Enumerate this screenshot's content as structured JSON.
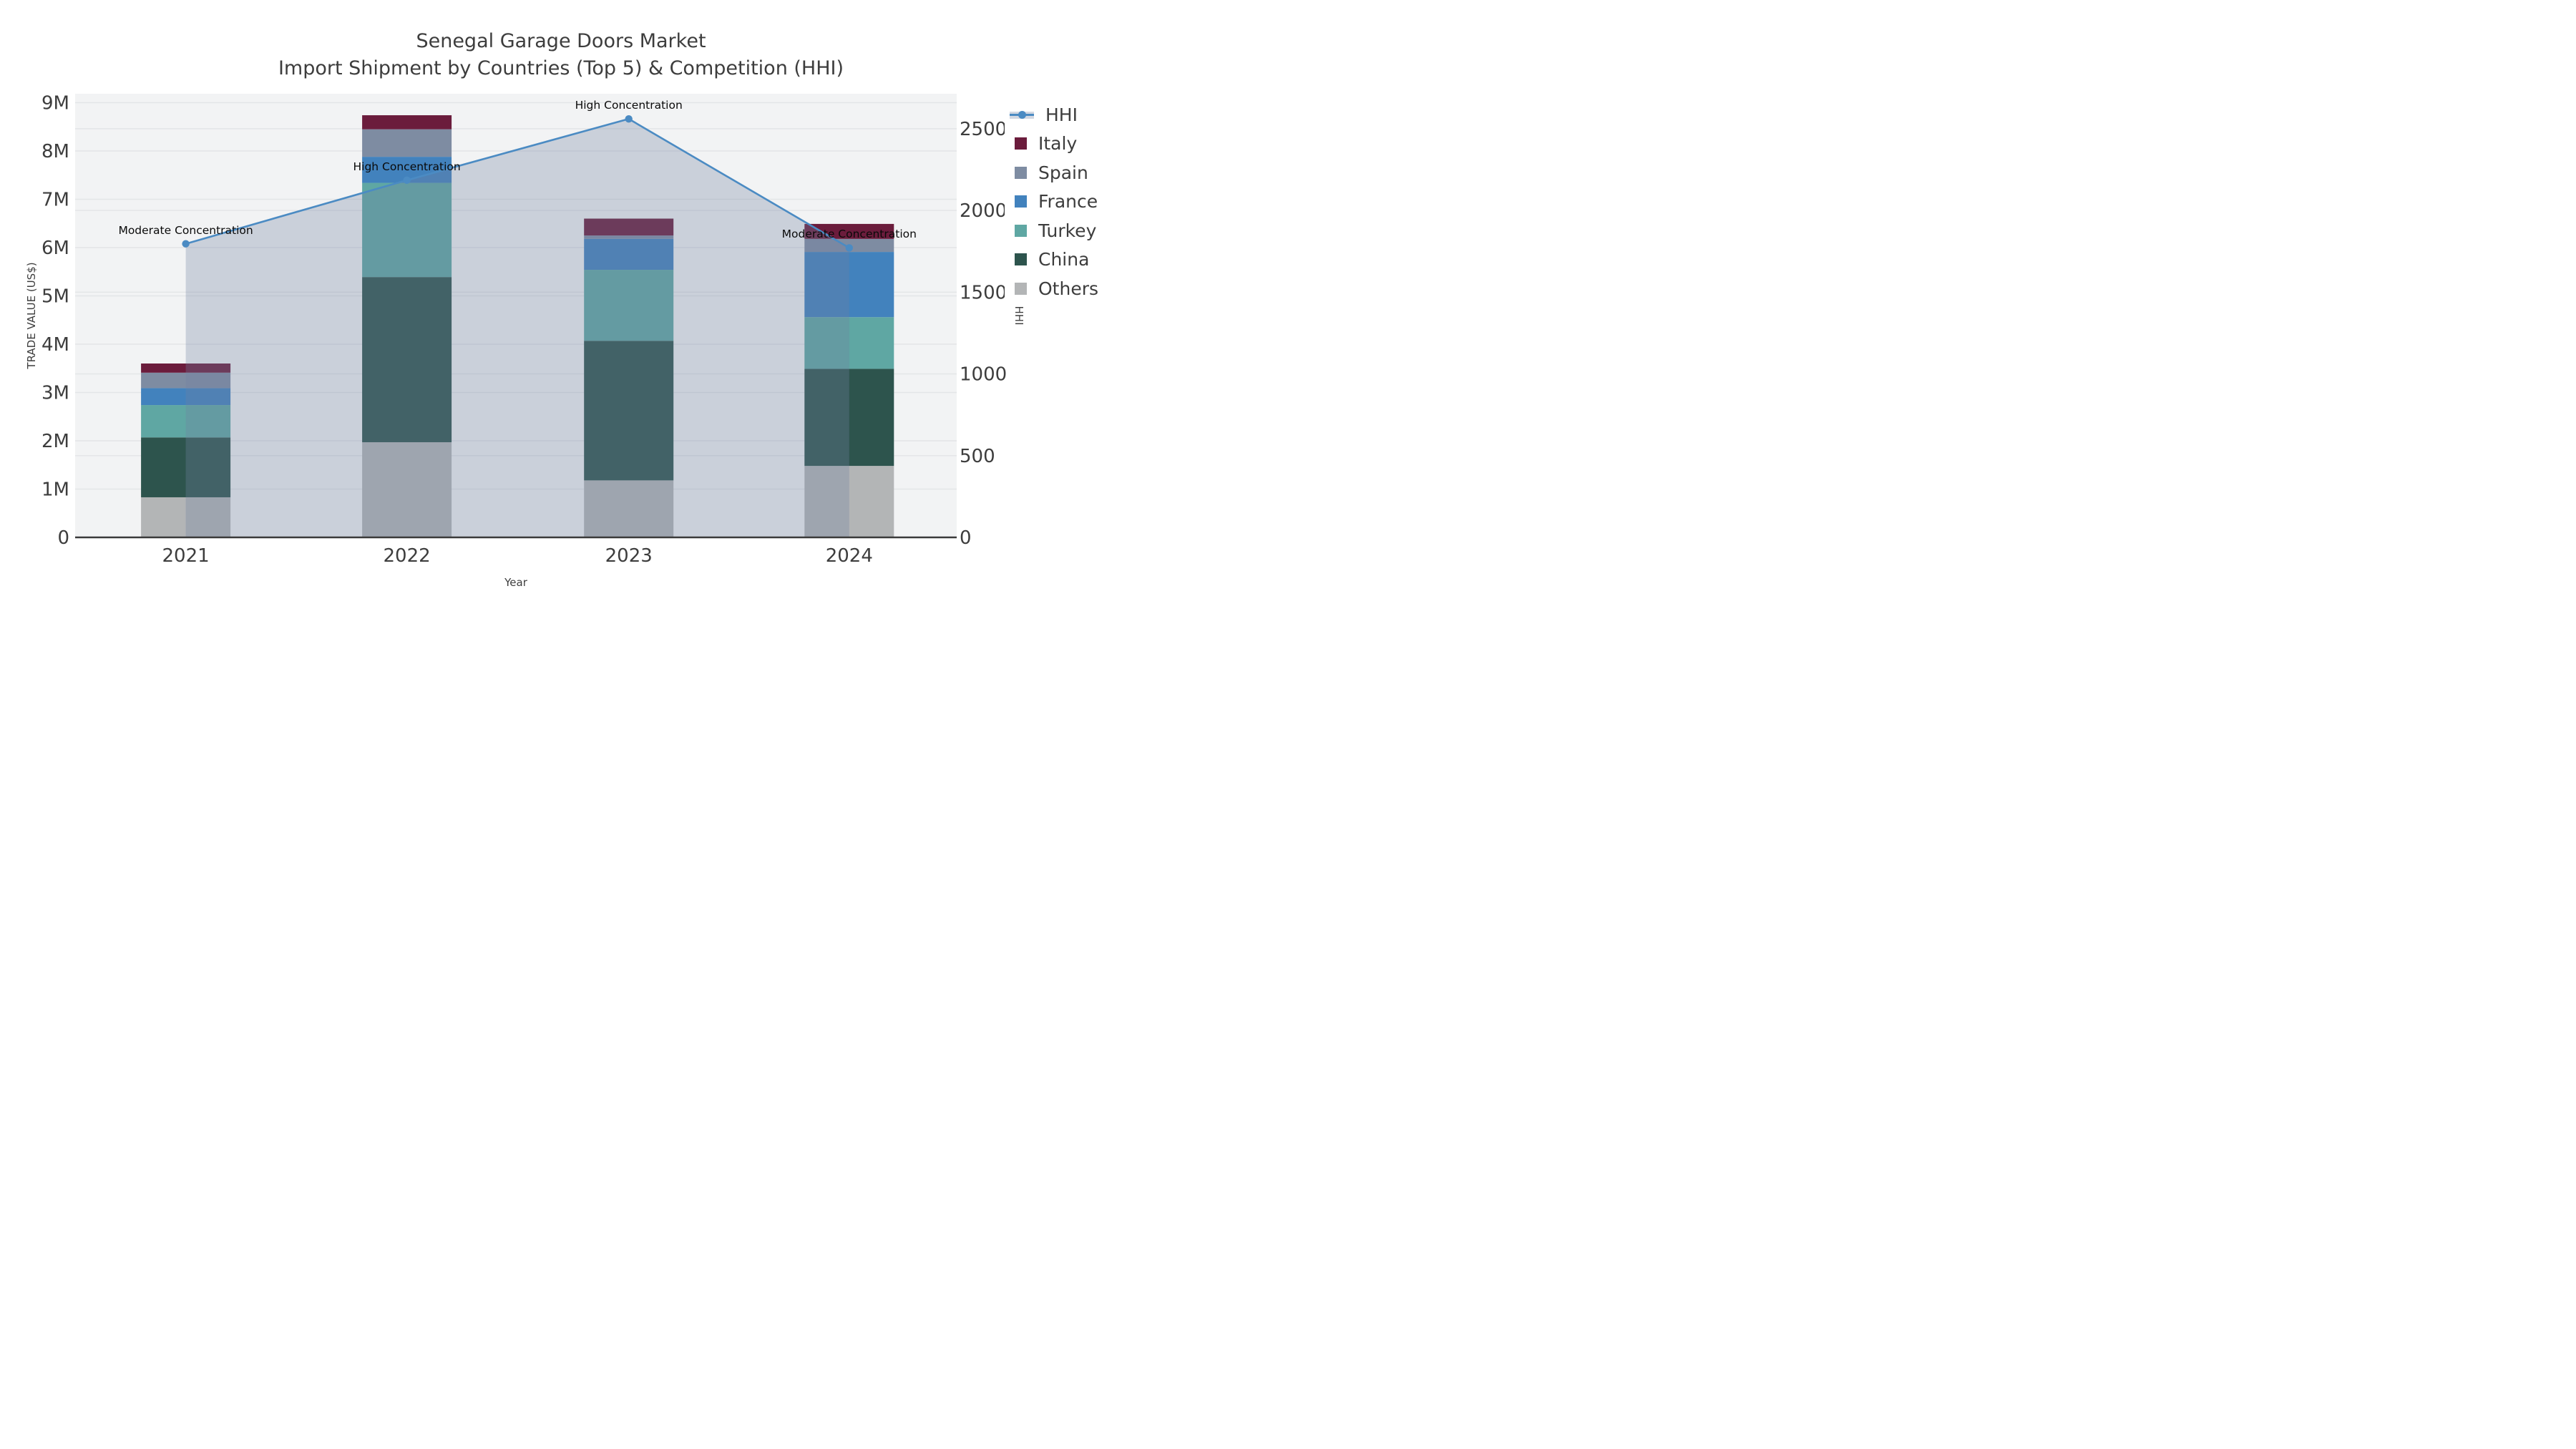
{
  "figure": {
    "title": "Senegal Garage Doors Market",
    "subtitle": "Import Shipment by Countries (Top 5) & Competition (HHI)"
  },
  "chart_data": {
    "type": "stacked-bar + line-area combo",
    "title": "Senegal Garage Doors Market",
    "subtitle": "Import Shipment by Countries (Top 5) & Competition (HHI)",
    "xlabel": "Year",
    "ylabel_left": "TRADE VALUE (US$)",
    "ylabel_right": "HHI",
    "categories": [
      "2021",
      "2022",
      "2023",
      "2024"
    ],
    "unit": "US$ millions",
    "series": [
      {
        "name": "Others",
        "color": "#b3b5b6",
        "values": [
          0.83,
          1.97,
          1.18,
          1.48
        ]
      },
      {
        "name": "China",
        "color": "#2d544d",
        "values": [
          1.24,
          3.42,
          2.89,
          2.01
        ]
      },
      {
        "name": "Turkey",
        "color": "#5fa7a3",
        "values": [
          0.67,
          1.95,
          1.47,
          1.07
        ]
      },
      {
        "name": "France",
        "color": "#4282bd",
        "values": [
          0.35,
          0.54,
          0.64,
          1.35
        ]
      },
      {
        "name": "Spain",
        "color": "#7e8ca2",
        "values": [
          0.32,
          0.57,
          0.07,
          0.27
        ]
      },
      {
        "name": "Italy",
        "color": "#6b1c3c",
        "values": [
          0.19,
          0.29,
          0.35,
          0.31
        ]
      }
    ],
    "stack_totals": [
      3.6,
      8.74,
      6.6,
      6.49
    ],
    "hhi": {
      "name": "HHI",
      "values": [
        1796,
        2185,
        2560,
        1771
      ],
      "line_color": "#4b8bc3",
      "marker": "circle",
      "area_fill_color": "rgba(112,130,160,0.31)"
    },
    "annotations": [
      {
        "category": "2021",
        "text": "Moderate Concentration"
      },
      {
        "category": "2022",
        "text": "High Concentration"
      },
      {
        "category": "2023",
        "text": "High Concentration"
      },
      {
        "category": "2024",
        "text": "Moderate Concentration"
      }
    ],
    "left_axis": {
      "title": "TRADE VALUE (US$)",
      "ticks": [
        "0",
        "1M",
        "2M",
        "3M",
        "4M",
        "5M",
        "6M",
        "7M",
        "8M",
        "9M"
      ],
      "tick_values": [
        0,
        1,
        2,
        3,
        4,
        5,
        6,
        7,
        8,
        9
      ],
      "range": [
        0,
        9.19
      ]
    },
    "right_axis": {
      "title": "HHI",
      "ticks": [
        "0",
        "500",
        "1000",
        "1500",
        "2000",
        "2500"
      ],
      "tick_values": [
        0,
        500,
        1000,
        1500,
        2000,
        2500
      ],
      "range": [
        0,
        2715
      ]
    },
    "legend": {
      "position": "upper right, outside plot",
      "order": [
        "HHI",
        "Italy",
        "Spain",
        "France",
        "Turkey",
        "China",
        "Others"
      ]
    },
    "style": {
      "plot_bg": "#f2f3f4",
      "grid_color": "#e3e5e7",
      "grid_on": true,
      "axis_line_color": "#3a3a3a",
      "text_color": "#3d3d3d",
      "annotation_color": "#0a0a0a"
    }
  }
}
